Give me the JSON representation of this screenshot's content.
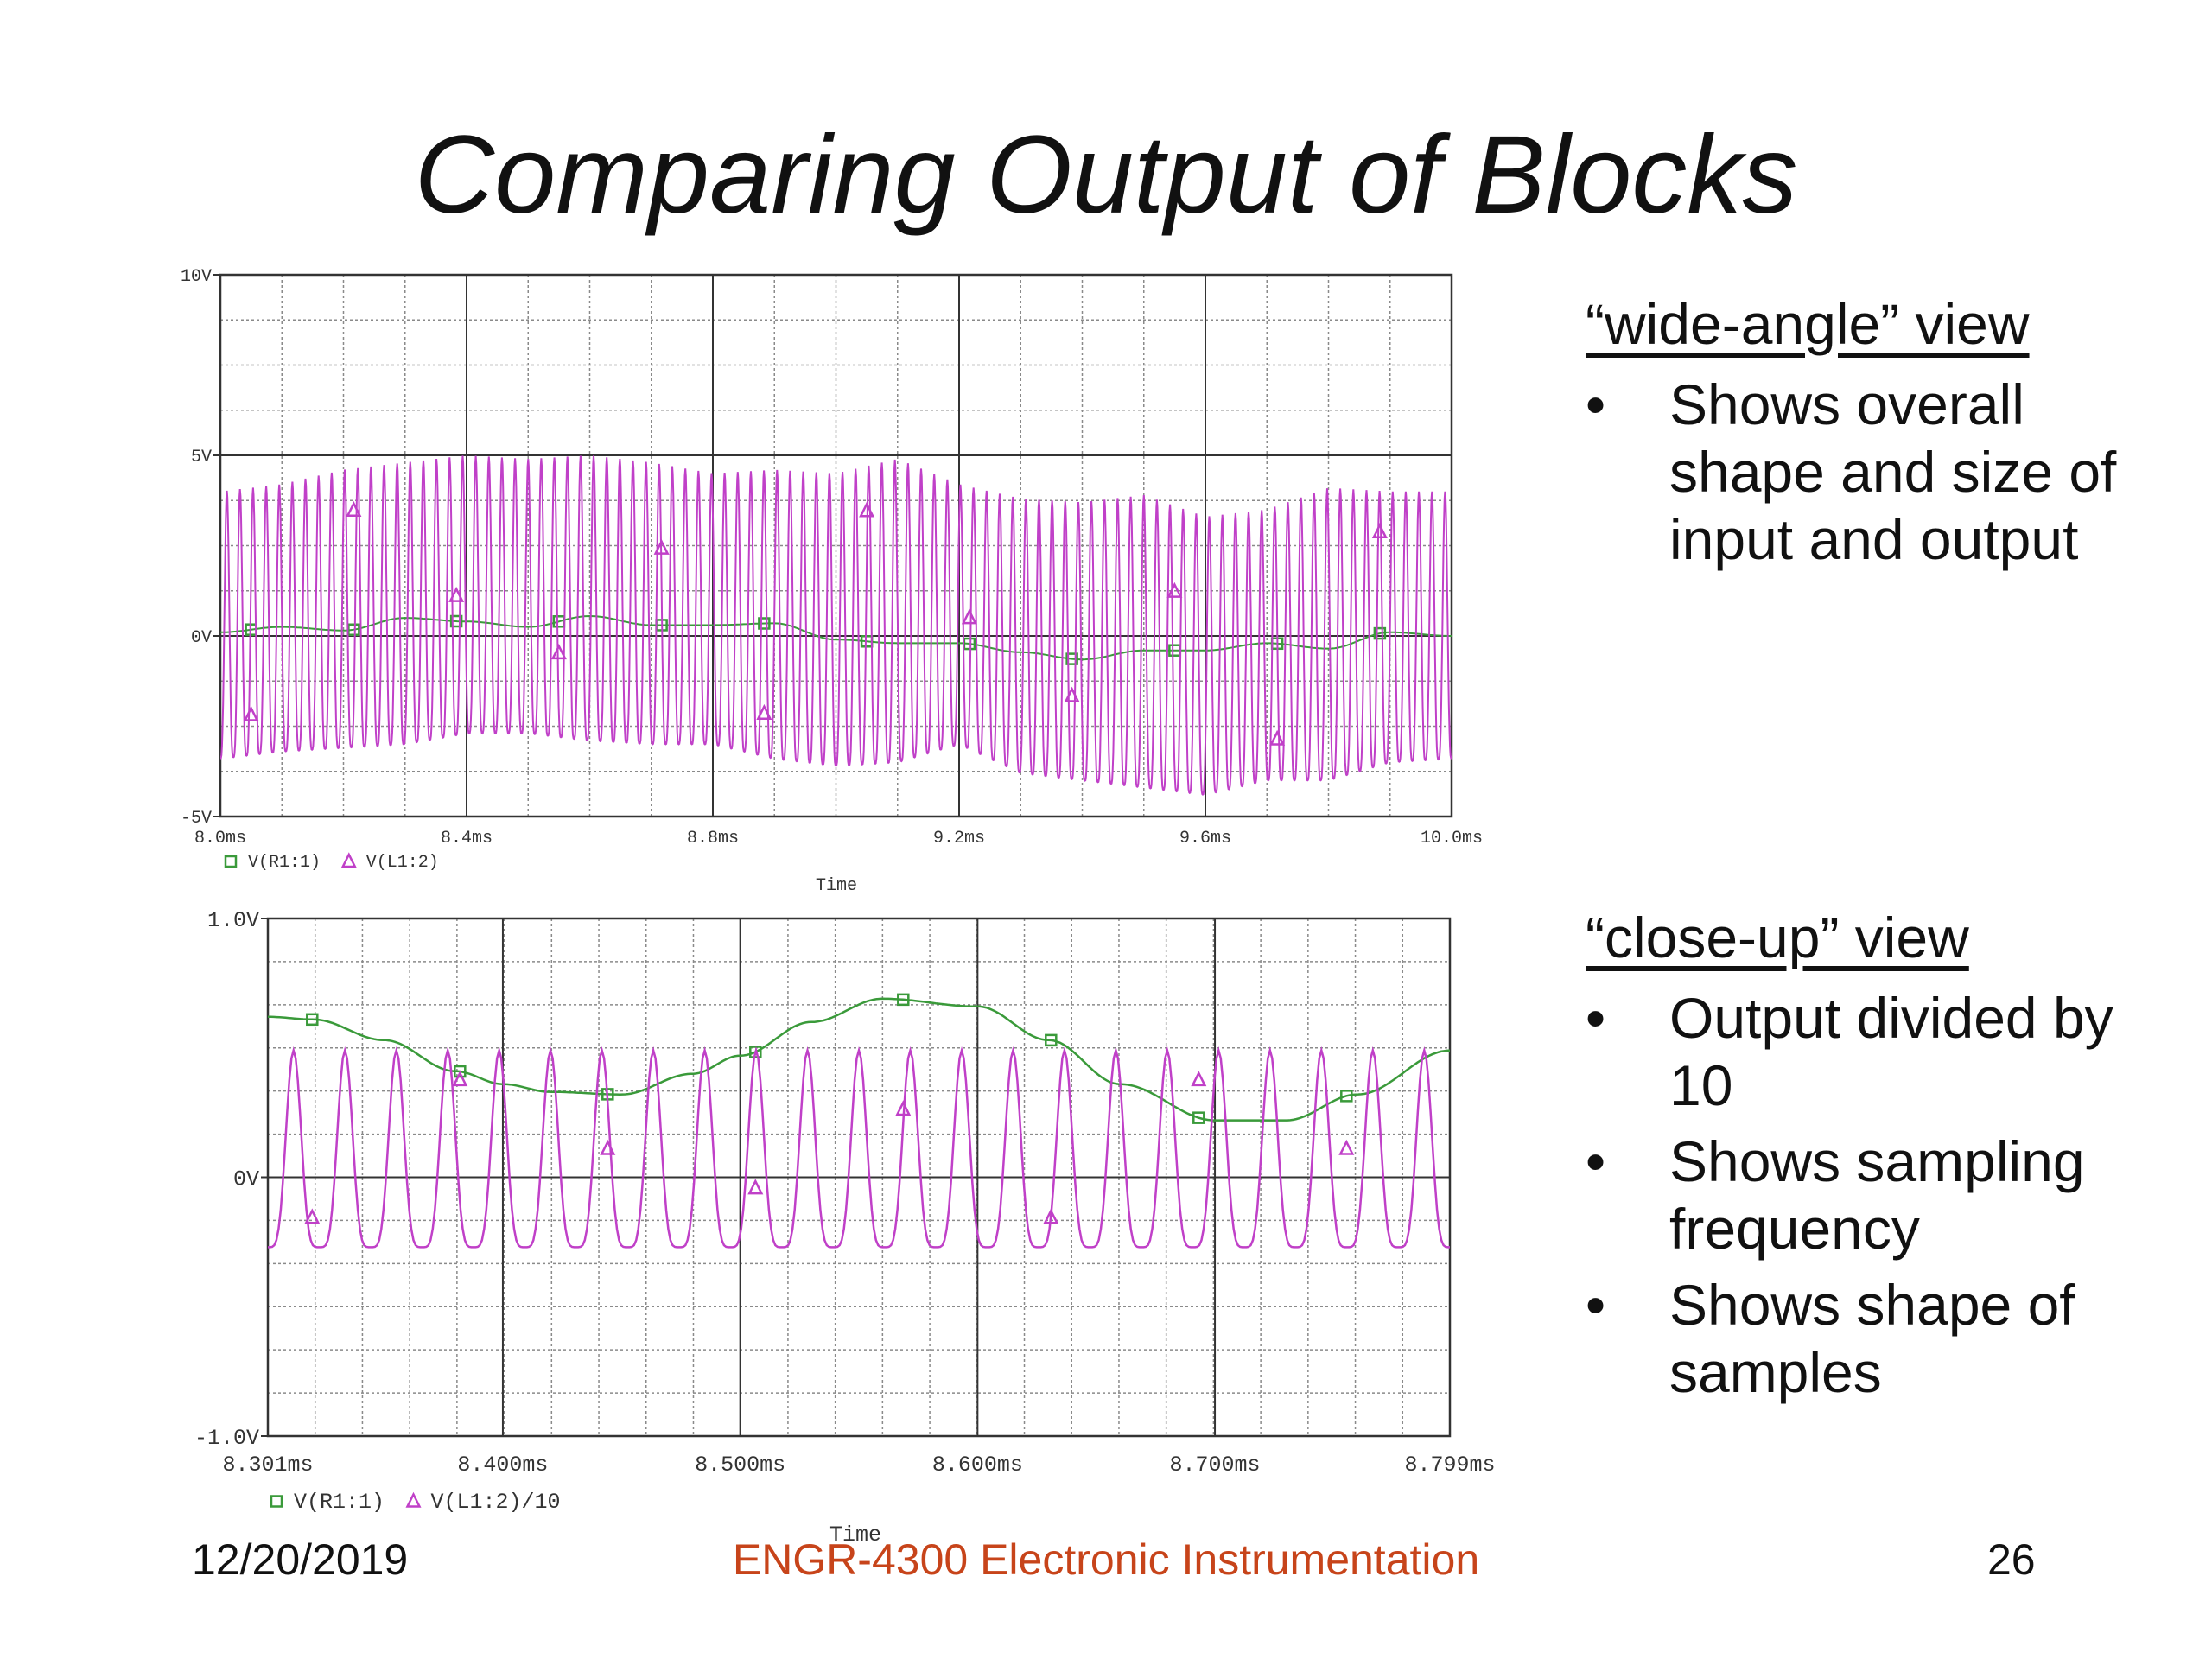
{
  "slide": {
    "title": "Comparing Output of Blocks",
    "footer": {
      "date": "12/20/2019",
      "course": "ENGR-4300  Electronic Instrumentation",
      "page": "26"
    },
    "accent_color": "#c7441a"
  },
  "sidebar": [
    {
      "heading": "“wide-angle” view",
      "bullets": [
        "Shows overall shape and size of input and output"
      ]
    },
    {
      "heading": "“close-up” view",
      "bullets": [
        "Output divided by 10",
        "Shows sampling frequency",
        "Shows shape of samples"
      ]
    }
  ],
  "colors": {
    "input": "#3a9a3a",
    "output": "#c040c8",
    "grid": "#555555"
  },
  "chart_data": [
    {
      "type": "line",
      "title": "",
      "xlabel": "Time",
      "ylabel": "",
      "xlim": [
        8.0,
        10.0
      ],
      "ylim": [
        -5,
        10
      ],
      "grid": true,
      "x_ticks": [
        8.0,
        8.4,
        8.8,
        9.2,
        9.6,
        10.0
      ],
      "x_tick_labels": [
        "8.0ms",
        "8.4ms",
        "8.8ms",
        "9.2ms",
        "9.6ms",
        "10.0ms"
      ],
      "y_ticks": [
        -5,
        0,
        5,
        10
      ],
      "y_tick_labels": [
        "-5V",
        "0V",
        "5V",
        "10V"
      ],
      "legend": [
        "V(R1:1)",
        "V(L1:2)"
      ],
      "legend_position": "bottom-left",
      "series": [
        {
          "name": "V(R1:1)",
          "color": "#3a9a3a",
          "marker": "square",
          "x": [
            8.0,
            8.1,
            8.2,
            8.3,
            8.4,
            8.5,
            8.6,
            8.7,
            8.8,
            8.9,
            9.0,
            9.1,
            9.2,
            9.3,
            9.4,
            9.5,
            9.6,
            9.7,
            9.8,
            9.9,
            10.0
          ],
          "values": [
            0.1,
            0.25,
            0.15,
            0.5,
            0.4,
            0.25,
            0.55,
            0.3,
            0.3,
            0.35,
            -0.1,
            -0.2,
            -0.2,
            -0.45,
            -0.65,
            -0.4,
            -0.4,
            -0.2,
            -0.35,
            0.1,
            0.0
          ]
        },
        {
          "name": "V(L1:2)",
          "color": "#c040c8",
          "marker": "triangle",
          "oscillating": true,
          "cycles": 94,
          "x": [
            8.0,
            8.1,
            8.2,
            8.3,
            8.4,
            8.5,
            8.6,
            8.7,
            8.8,
            8.9,
            9.0,
            9.1,
            9.2,
            9.3,
            9.4,
            9.5,
            9.6,
            9.7,
            9.8,
            9.9,
            10.0
          ],
          "upper_envelope": [
            4.0,
            4.2,
            4.6,
            4.8,
            5.0,
            4.9,
            5.0,
            4.8,
            4.5,
            4.6,
            4.5,
            4.9,
            4.2,
            3.8,
            3.7,
            3.9,
            3.3,
            3.5,
            4.1,
            4.0,
            4.0
          ],
          "lower_envelope": [
            -3.4,
            -3.2,
            -3.1,
            -3.0,
            -2.7,
            -2.7,
            -2.9,
            -3.0,
            -3.0,
            -3.4,
            -3.6,
            -3.5,
            -3.0,
            -3.8,
            -4.0,
            -4.2,
            -4.4,
            -4.0,
            -4.0,
            -3.5,
            -3.4
          ]
        }
      ]
    },
    {
      "type": "line",
      "title": "",
      "xlabel": "Time",
      "ylabel": "",
      "xlim": [
        8.301,
        8.799
      ],
      "ylim": [
        -1.0,
        1.0
      ],
      "grid": true,
      "x_ticks": [
        8.301,
        8.4,
        8.5,
        8.6,
        8.7,
        8.799
      ],
      "x_tick_labels": [
        "8.301ms",
        "8.400ms",
        "8.500ms",
        "8.600ms",
        "8.700ms",
        "8.799ms"
      ],
      "y_ticks": [
        -1.0,
        0,
        1.0
      ],
      "y_tick_labels": [
        "-1.0V",
        "0V",
        "1.0V"
      ],
      "legend": [
        "V(R1:1)",
        "V(L1:2)/10"
      ],
      "legend_position": "bottom-left",
      "series": [
        {
          "name": "V(R1:1)",
          "color": "#3a9a3a",
          "marker": "square",
          "x": [
            8.301,
            8.32,
            8.35,
            8.38,
            8.4,
            8.42,
            8.45,
            8.48,
            8.5,
            8.53,
            8.56,
            8.6,
            8.63,
            8.66,
            8.7,
            8.73,
            8.76,
            8.799
          ],
          "values": [
            0.62,
            0.61,
            0.53,
            0.41,
            0.36,
            0.33,
            0.32,
            0.4,
            0.47,
            0.6,
            0.69,
            0.66,
            0.53,
            0.36,
            0.22,
            0.22,
            0.32,
            0.49
          ]
        },
        {
          "name": "V(L1:2)/10",
          "color": "#c040c8",
          "marker": "triangle",
          "oscillating": true,
          "cycles": 23,
          "upper_value": 0.49,
          "lower_value": -0.27
        }
      ]
    }
  ]
}
